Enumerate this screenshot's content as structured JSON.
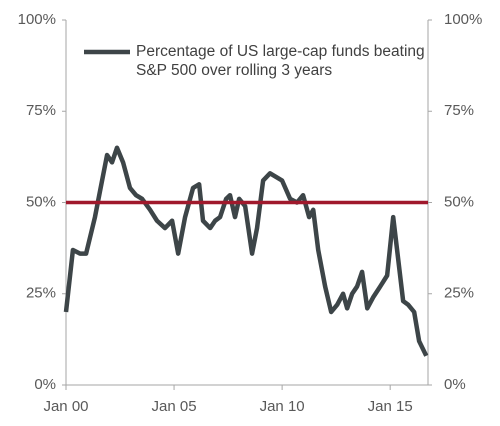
{
  "chart_data": {
    "type": "line",
    "x": [
      2000.0,
      2000.32,
      2000.65,
      2000.93,
      2001.34,
      2001.57,
      2001.9,
      2002.13,
      2002.36,
      2002.64,
      2002.96,
      2003.24,
      2003.52,
      2003.89,
      2004.21,
      2004.58,
      2004.91,
      2005.19,
      2005.51,
      2005.88,
      2006.16,
      2006.34,
      2006.67,
      2006.9,
      2007.13,
      2007.41,
      2007.59,
      2007.82,
      2008.01,
      2008.29,
      2008.61,
      2008.84,
      2009.12,
      2009.44,
      2009.72,
      2010.0,
      2010.37,
      2010.69,
      2010.97,
      2011.25,
      2011.44,
      2011.67,
      2011.99,
      2012.27,
      2012.55,
      2012.82,
      2013.01,
      2013.24,
      2013.47,
      2013.7,
      2013.94,
      2014.21,
      2014.54,
      2014.86,
      2015.14,
      2015.32,
      2015.6,
      2015.83,
      2016.11,
      2016.34,
      2016.67
    ],
    "series": [
      {
        "name": "Percentage of US large-cap funds beating S&P 500 over rolling 3 years",
        "color": "#3d4548",
        "values": [
          20,
          37,
          36,
          36,
          46,
          53,
          63,
          61,
          65,
          61,
          54,
          52,
          51,
          48,
          45,
          43,
          45,
          36,
          46,
          54,
          55,
          45,
          43,
          45,
          46,
          51,
          52,
          46,
          51,
          49,
          36,
          43,
          56,
          58,
          57,
          56,
          51,
          50,
          52,
          46,
          48,
          37,
          27,
          20,
          22,
          25,
          21,
          25,
          27,
          31,
          21,
          24,
          27,
          30,
          46,
          37,
          23,
          22,
          20,
          12,
          8
        ]
      }
    ],
    "reference_line": {
      "value": 50,
      "color": "#a0192c"
    },
    "xlim": [
      2000,
      2016.75
    ],
    "xticks": [
      {
        "value": 2000,
        "label": "Jan 00"
      },
      {
        "value": 2005,
        "label": "Jan 05"
      },
      {
        "value": 2010,
        "label": "Jan 10"
      },
      {
        "value": 2015,
        "label": "Jan 15"
      }
    ],
    "ylim": [
      0,
      100
    ],
    "yticks": [
      {
        "value": 0,
        "label": "0%"
      },
      {
        "value": 25,
        "label": "25%"
      },
      {
        "value": 50,
        "label": "50%"
      },
      {
        "value": 75,
        "label": "75%"
      },
      {
        "value": 100,
        "label": "100%"
      }
    ],
    "y2lim": [
      0,
      100
    ],
    "y2ticks": [
      {
        "value": 0,
        "label": "0%"
      },
      {
        "value": 25,
        "label": "25%"
      },
      {
        "value": 50,
        "label": "50%"
      },
      {
        "value": 75,
        "label": "75%"
      },
      {
        "value": 100,
        "label": "100%"
      }
    ],
    "legend": "top-left"
  }
}
